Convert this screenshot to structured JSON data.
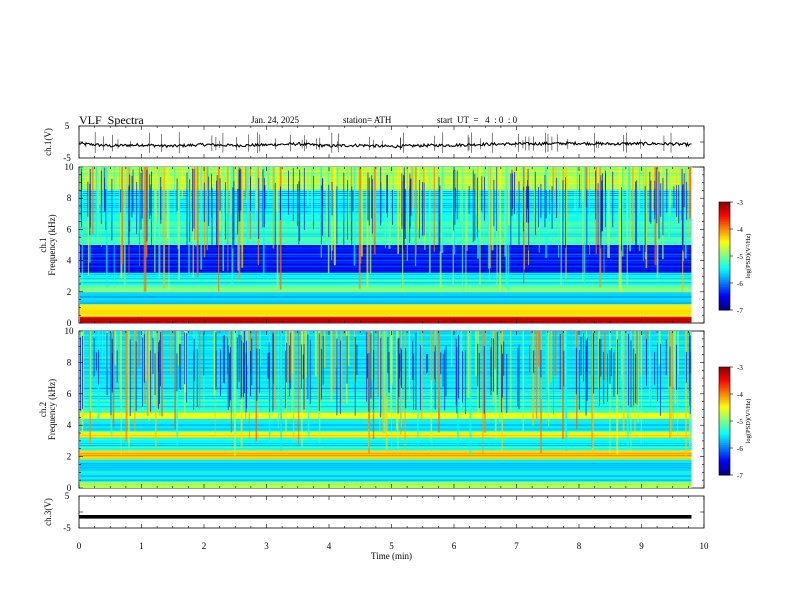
{
  "header": {
    "title": "VLF  Spectra",
    "date": "Jan. 24, 2025",
    "station": "station= ATH",
    "start": "start  UT  =   4  : 0  : 0"
  },
  "chart_data": [
    {
      "type": "line",
      "panel": "ch1-voltage",
      "ylabel": "ch.1(V)",
      "ylim": [
        -5,
        5
      ],
      "yticks": [
        "5",
        "-5"
      ],
      "description_values": "noisy trace around -1 V",
      "x": [
        0,
        0.5,
        1,
        1.5,
        2,
        2.5,
        3,
        3.5,
        4,
        4.5,
        5,
        5.5,
        6,
        6.5,
        7,
        7.5,
        8,
        8.5,
        9,
        9.5,
        9.8
      ],
      "y": [
        -0.5,
        -1.2,
        -0.9,
        -1.3,
        -0.8,
        -1.1,
        -0.9,
        -0.6,
        -1.2,
        -1.0,
        -1.4,
        -1.1,
        -1.0,
        -0.7,
        -0.6,
        -0.5,
        -0.4,
        -0.6,
        -0.5,
        -0.6,
        -0.9
      ]
    },
    {
      "type": "heatmap",
      "panel": "ch1-spectrogram",
      "ylabel": "Frequency  (kHz)",
      "channel_label": "ch.1",
      "ylim": [
        0,
        10
      ],
      "yticks": [
        "0",
        "2",
        "4",
        "6",
        "8",
        "10"
      ],
      "colorbar": {
        "label": "log(PSD)(V²/Hz)",
        "range": [
          -7,
          -3
        ],
        "ticks": [
          "-3",
          "-4",
          "-5",
          "-6",
          "-7"
        ]
      },
      "bands": [
        {
          "from": 0,
          "to": 0.4,
          "level": -3.3
        },
        {
          "from": 0.4,
          "to": 1.2,
          "level": -4.4
        },
        {
          "from": 1.2,
          "to": 2.0,
          "level": -5.7
        },
        {
          "from": 2.0,
          "to": 2.4,
          "level": -5.0
        },
        {
          "from": 2.4,
          "to": 3.2,
          "level": -5.4
        },
        {
          "from": 3.2,
          "to": 5.0,
          "level": -6.4
        },
        {
          "from": 5.0,
          "to": 6.5,
          "level": -5.3
        },
        {
          "from": 6.5,
          "to": 8.5,
          "level": -5.5
        },
        {
          "from": 8.5,
          "to": 10.0,
          "level": -4.8
        }
      ]
    },
    {
      "type": "heatmap",
      "panel": "ch2-spectrogram",
      "ylabel": "Frequency  (kHz)",
      "channel_label": "ch.2",
      "ylim": [
        0,
        10
      ],
      "yticks": [
        "0",
        "2",
        "4",
        "6",
        "8",
        "10"
      ],
      "colorbar": {
        "label": "log(PSD)(V²/Hz)",
        "range": [
          -7,
          -3
        ],
        "ticks": [
          "-3",
          "-4",
          "-5",
          "-6",
          "-7"
        ]
      },
      "bands": [
        {
          "from": 0,
          "to": 0.4,
          "level": -4.8
        },
        {
          "from": 0.4,
          "to": 1.8,
          "level": -5.6
        },
        {
          "from": 1.8,
          "to": 2.4,
          "level": -4.3
        },
        {
          "from": 2.4,
          "to": 3.2,
          "level": -5.5
        },
        {
          "from": 3.2,
          "to": 3.6,
          "level": -4.6
        },
        {
          "from": 3.6,
          "to": 4.4,
          "level": -5.6
        },
        {
          "from": 4.4,
          "to": 4.8,
          "level": -4.5
        },
        {
          "from": 4.8,
          "to": 6.0,
          "level": -5.4
        },
        {
          "from": 6.0,
          "to": 10.0,
          "level": -5.6
        }
      ]
    },
    {
      "type": "line",
      "panel": "ch3-voltage",
      "ylabel": "ch.3(V)",
      "ylim": [
        -5,
        5
      ],
      "yticks": [
        "5",
        "-5"
      ],
      "x": [
        0,
        9.8
      ],
      "y": [
        -1.5,
        -1.5
      ]
    }
  ],
  "xaxis": {
    "label": "Time  (min)",
    "range": [
      0,
      10
    ],
    "ticks": [
      "0",
      "1",
      "2",
      "3",
      "4",
      "5",
      "6",
      "7",
      "8",
      "9",
      "10"
    ]
  }
}
